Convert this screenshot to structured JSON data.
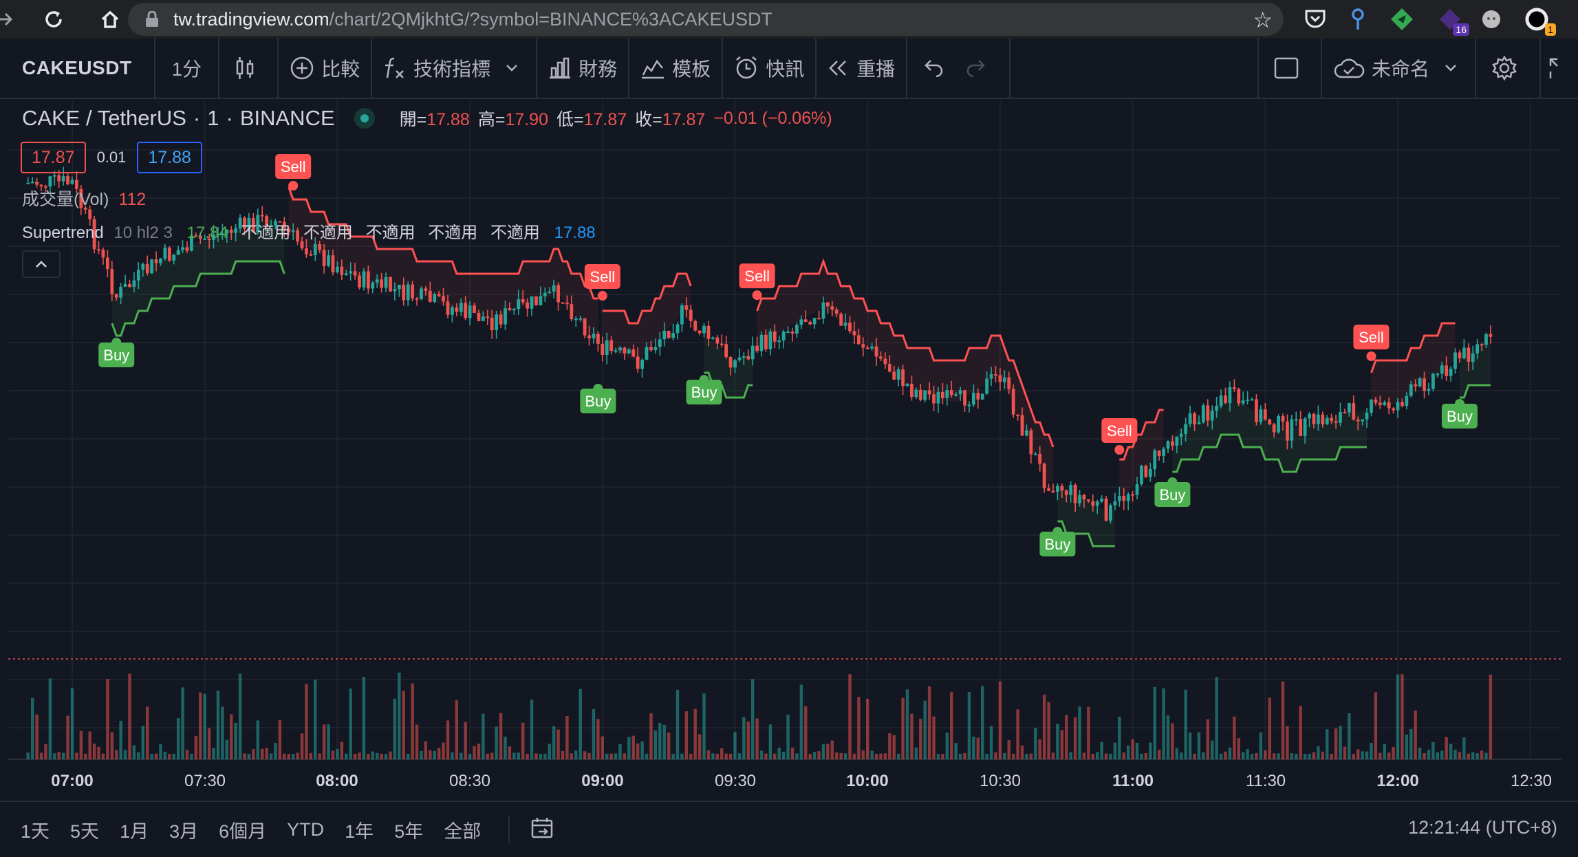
{
  "browser": {
    "url_host": "tw.tradingview.com",
    "url_path": "/chart/2QMjkhtG/?symbol=BINANCE%3ACAKEUSDT",
    "extension_badges": [
      "16",
      "1"
    ]
  },
  "toolbar": {
    "symbol": "CAKEUSDT",
    "interval": "1分",
    "compare": "比較",
    "indicators": "技術指標",
    "financials": "財務",
    "templates": "模板",
    "alerts": "快訊",
    "replay": "重播",
    "layout_name": "未命名"
  },
  "legend": {
    "title": "CAKE / TetherUS",
    "interval": "1",
    "exchange": "BINANCE",
    "open_label": "開=",
    "open": "17.88",
    "high_label": "高=",
    "high": "17.90",
    "low_label": "低=",
    "low": "17.87",
    "close_label": "收=",
    "close": "17.87",
    "change": "−0.01 (−0.06%)",
    "bid": "17.87",
    "spread": "0.01",
    "ask": "17.88",
    "volume_label": "成交量(Vol)",
    "volume_value": "112",
    "st_name": "Supertrend",
    "st_params": "10 hl2 3",
    "st_value": "17.84",
    "na": "不適用",
    "st_last": "17.88"
  },
  "time_axis": [
    "07:00",
    "07:30",
    "08:00",
    "08:30",
    "09:00",
    "09:30",
    "10:00",
    "10:30",
    "11:00",
    "11:30",
    "12:00",
    "12:30"
  ],
  "range_buttons": [
    "1天",
    "5天",
    "1月",
    "3月",
    "6個月",
    "YTD",
    "1年",
    "5年",
    "全部"
  ],
  "clock": "12:21:44 (UTC+8)",
  "colors": {
    "up": "#26a69a",
    "down": "#ef5350",
    "supertrend_up": "#4caf50",
    "supertrend_down": "#ff5252",
    "background": "#131722"
  },
  "chart_data": {
    "type": "candlestick",
    "symbol": "CAKE / TetherUS",
    "interval": "1",
    "signals": [
      {
        "label": "Sell",
        "time": "07:50"
      },
      {
        "label": "Buy",
        "time": "07:10"
      },
      {
        "label": "Sell",
        "time": "09:00"
      },
      {
        "label": "Buy",
        "time": "08:59"
      },
      {
        "label": "Buy",
        "time": "09:23"
      },
      {
        "label": "Sell",
        "time": "09:35"
      },
      {
        "label": "Sell",
        "time": "10:57"
      },
      {
        "label": "Buy",
        "time": "10:43"
      },
      {
        "label": "Buy",
        "time": "11:09"
      },
      {
        "label": "Sell",
        "time": "11:54"
      },
      {
        "label": "Buy",
        "time": "12:14"
      }
    ],
    "supertrend_segments": [
      {
        "trend": "up",
        "start": "07:09",
        "end": "07:48"
      },
      {
        "trend": "down",
        "start": "07:49",
        "end": "08:59"
      },
      {
        "trend": "down",
        "start": "09:00",
        "end": "09:20"
      },
      {
        "trend": "up",
        "start": "09:23",
        "end": "09:34"
      },
      {
        "trend": "down",
        "start": "09:35",
        "end": "10:42"
      },
      {
        "trend": "up",
        "start": "10:43",
        "end": "10:56"
      },
      {
        "trend": "down",
        "start": "10:57",
        "end": "11:07"
      },
      {
        "trend": "up",
        "start": "11:09",
        "end": "11:53"
      },
      {
        "trend": "down",
        "start": "11:54",
        "end": "12:13"
      },
      {
        "trend": "up",
        "start": "12:14",
        "end": "12:21"
      }
    ],
    "last_price": "17.87",
    "xlabel": "",
    "ylabel": ""
  }
}
